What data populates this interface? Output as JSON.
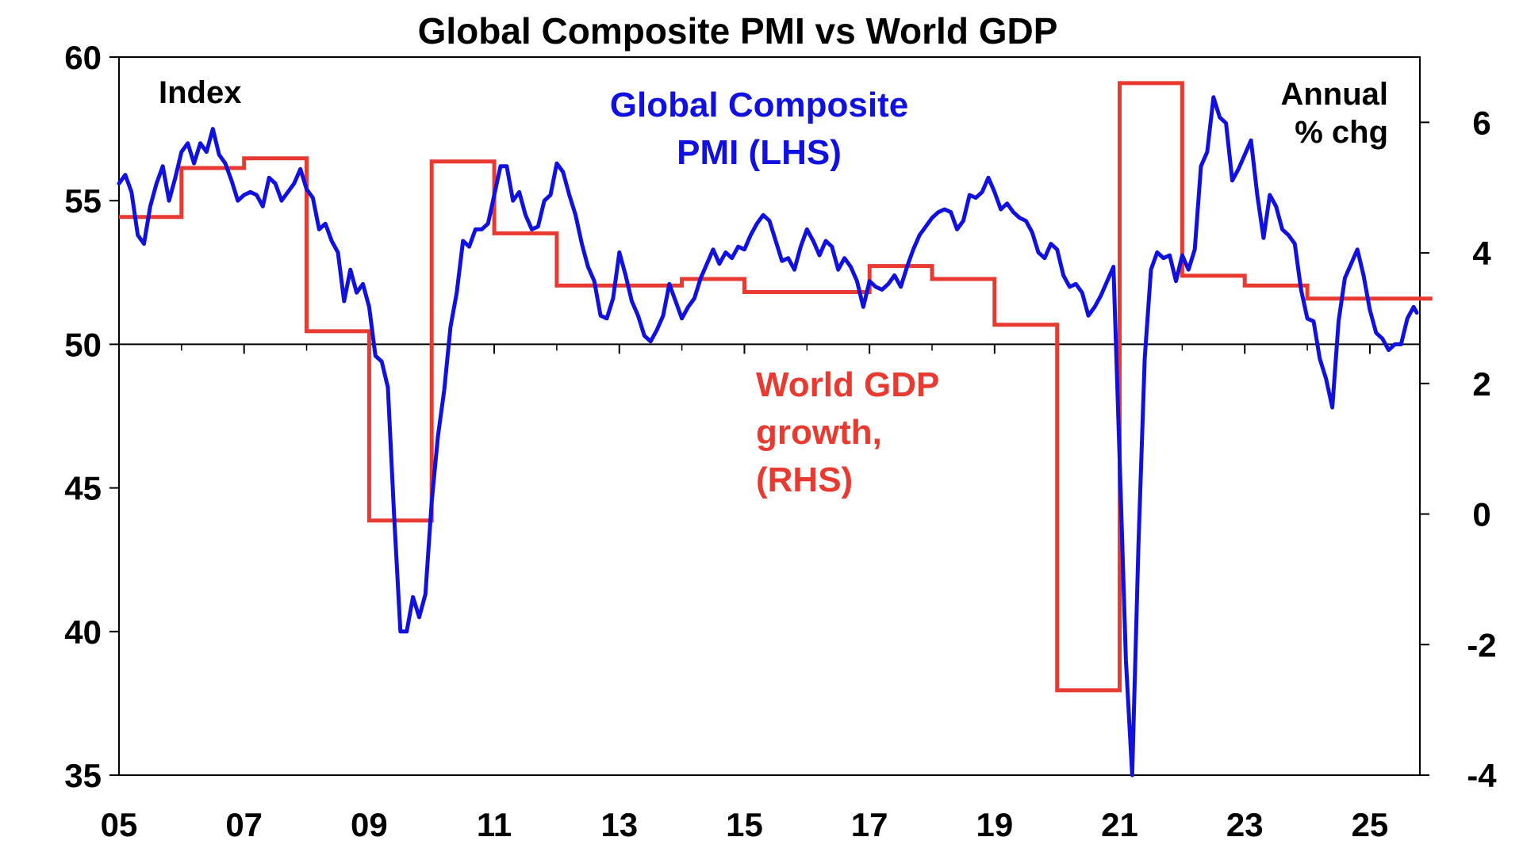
{
  "chart_data": {
    "type": "line",
    "title": "Global Composite PMI vs World GDP",
    "left_axis": {
      "label": "Index",
      "range": [
        35,
        60
      ],
      "ticks": [
        "35",
        "40",
        "45",
        "50",
        "55",
        "60"
      ]
    },
    "right_axis": {
      "label_lines": [
        "Annual",
        "% chg"
      ],
      "range": [
        -4,
        7
      ],
      "ticks": [
        "-4",
        "-2",
        "0",
        "2",
        "4",
        "6"
      ]
    },
    "x_axis": {
      "range": [
        2005,
        2025.8
      ],
      "ticks": [
        "05",
        "07",
        "09",
        "11",
        "13",
        "15",
        "17",
        "19",
        "21",
        "23",
        "25"
      ]
    },
    "reference_line": 50,
    "grid": false,
    "series": [
      {
        "name_lines": [
          "Global Composite",
          "PMI (LHS)"
        ],
        "axis": "left",
        "color": "#1010e0",
        "points": [
          [
            2005.0,
            55.6
          ],
          [
            2005.1,
            55.9
          ],
          [
            2005.2,
            55.3
          ],
          [
            2005.3,
            53.8
          ],
          [
            2005.4,
            53.5
          ],
          [
            2005.5,
            54.8
          ],
          [
            2005.6,
            55.6
          ],
          [
            2005.7,
            56.2
          ],
          [
            2005.8,
            55.0
          ],
          [
            2005.9,
            55.8
          ],
          [
            2006.0,
            56.7
          ],
          [
            2006.1,
            57.0
          ],
          [
            2006.2,
            56.3
          ],
          [
            2006.3,
            57.0
          ],
          [
            2006.4,
            56.7
          ],
          [
            2006.5,
            57.5
          ],
          [
            2006.6,
            56.6
          ],
          [
            2006.7,
            56.3
          ],
          [
            2006.8,
            55.7
          ],
          [
            2006.9,
            55.0
          ],
          [
            2007.0,
            55.2
          ],
          [
            2007.1,
            55.3
          ],
          [
            2007.2,
            55.2
          ],
          [
            2007.3,
            54.8
          ],
          [
            2007.4,
            55.8
          ],
          [
            2007.5,
            55.6
          ],
          [
            2007.6,
            55.0
          ],
          [
            2007.7,
            55.3
          ],
          [
            2007.8,
            55.6
          ],
          [
            2007.9,
            56.1
          ],
          [
            2008.0,
            55.4
          ],
          [
            2008.1,
            55.1
          ],
          [
            2008.2,
            54.0
          ],
          [
            2008.3,
            54.2
          ],
          [
            2008.4,
            53.6
          ],
          [
            2008.5,
            53.2
          ],
          [
            2008.6,
            51.5
          ],
          [
            2008.7,
            52.6
          ],
          [
            2008.8,
            51.8
          ],
          [
            2008.9,
            52.1
          ],
          [
            2009.0,
            51.3
          ],
          [
            2009.1,
            49.6
          ],
          [
            2009.2,
            49.4
          ],
          [
            2009.3,
            48.5
          ],
          [
            2009.4,
            44.0
          ],
          [
            2009.5,
            40.0
          ],
          [
            2009.6,
            40.0
          ],
          [
            2009.7,
            41.2
          ],
          [
            2009.8,
            40.5
          ],
          [
            2009.9,
            41.3
          ],
          [
            2010.0,
            44.5
          ],
          [
            2010.1,
            46.8
          ],
          [
            2010.2,
            48.4
          ],
          [
            2010.3,
            50.6
          ],
          [
            2010.4,
            51.8
          ],
          [
            2010.5,
            53.6
          ],
          [
            2010.6,
            53.4
          ],
          [
            2010.7,
            54.0
          ],
          [
            2010.8,
            54.0
          ],
          [
            2010.9,
            54.2
          ],
          [
            2011.0,
            55.2
          ],
          [
            2011.1,
            56.2
          ],
          [
            2011.2,
            56.2
          ],
          [
            2011.3,
            55.0
          ],
          [
            2011.4,
            55.3
          ],
          [
            2011.5,
            54.5
          ],
          [
            2011.6,
            54.0
          ],
          [
            2011.7,
            54.1
          ],
          [
            2011.8,
            55.0
          ],
          [
            2011.9,
            55.2
          ],
          [
            2012.0,
            56.3
          ],
          [
            2012.1,
            56.0
          ],
          [
            2012.2,
            55.2
          ],
          [
            2012.3,
            54.5
          ],
          [
            2012.4,
            53.5
          ],
          [
            2012.5,
            52.7
          ],
          [
            2012.6,
            52.2
          ],
          [
            2012.7,
            51.0
          ],
          [
            2012.8,
            50.9
          ],
          [
            2012.9,
            51.6
          ],
          [
            2013.0,
            53.2
          ],
          [
            2013.1,
            52.4
          ],
          [
            2013.2,
            51.5
          ],
          [
            2013.3,
            51.0
          ],
          [
            2013.4,
            50.3
          ],
          [
            2013.5,
            50.1
          ],
          [
            2013.6,
            50.5
          ],
          [
            2013.7,
            51.0
          ],
          [
            2013.8,
            52.1
          ],
          [
            2013.9,
            51.5
          ],
          [
            2014.0,
            50.9
          ],
          [
            2014.1,
            51.3
          ],
          [
            2014.2,
            51.6
          ],
          [
            2014.3,
            52.3
          ],
          [
            2014.4,
            52.8
          ],
          [
            2014.5,
            53.3
          ],
          [
            2014.6,
            52.8
          ],
          [
            2014.7,
            53.2
          ],
          [
            2014.8,
            53.0
          ],
          [
            2014.9,
            53.4
          ],
          [
            2015.0,
            53.3
          ],
          [
            2015.1,
            53.8
          ],
          [
            2015.2,
            54.2
          ],
          [
            2015.3,
            54.5
          ],
          [
            2015.4,
            54.3
          ],
          [
            2015.5,
            53.6
          ],
          [
            2015.6,
            52.9
          ],
          [
            2015.7,
            53.0
          ],
          [
            2015.8,
            52.6
          ],
          [
            2015.9,
            53.4
          ],
          [
            2016.0,
            54.0
          ],
          [
            2016.1,
            53.6
          ],
          [
            2016.2,
            53.1
          ],
          [
            2016.3,
            53.6
          ],
          [
            2016.4,
            53.4
          ],
          [
            2016.5,
            52.6
          ],
          [
            2016.6,
            53.0
          ],
          [
            2016.7,
            52.7
          ],
          [
            2016.8,
            52.2
          ],
          [
            2016.9,
            51.3
          ],
          [
            2017.0,
            52.2
          ],
          [
            2017.1,
            52.0
          ],
          [
            2017.2,
            51.9
          ],
          [
            2017.3,
            52.1
          ],
          [
            2017.4,
            52.4
          ],
          [
            2017.5,
            52.0
          ],
          [
            2017.6,
            52.7
          ],
          [
            2017.7,
            53.3
          ],
          [
            2017.8,
            53.8
          ],
          [
            2017.9,
            54.1
          ],
          [
            2018.0,
            54.4
          ],
          [
            2018.1,
            54.6
          ],
          [
            2018.2,
            54.7
          ],
          [
            2018.3,
            54.6
          ],
          [
            2018.4,
            54.0
          ],
          [
            2018.5,
            54.3
          ],
          [
            2018.6,
            55.2
          ],
          [
            2018.7,
            55.1
          ],
          [
            2018.8,
            55.3
          ],
          [
            2018.9,
            55.8
          ],
          [
            2019.0,
            55.3
          ],
          [
            2019.1,
            54.7
          ],
          [
            2019.2,
            54.9
          ],
          [
            2019.3,
            54.6
          ],
          [
            2019.4,
            54.4
          ],
          [
            2019.5,
            54.3
          ],
          [
            2019.6,
            53.9
          ],
          [
            2019.7,
            53.2
          ],
          [
            2019.8,
            53.0
          ],
          [
            2019.9,
            53.5
          ],
          [
            2020.0,
            53.3
          ],
          [
            2020.1,
            52.4
          ],
          [
            2020.2,
            52.0
          ],
          [
            2020.3,
            52.1
          ],
          [
            2020.4,
            51.8
          ],
          [
            2020.5,
            51.0
          ],
          [
            2020.6,
            51.3
          ],
          [
            2020.7,
            51.7
          ],
          [
            2020.8,
            52.2
          ],
          [
            2020.9,
            52.7
          ],
          [
            2021.0,
            46.0
          ],
          [
            2021.1,
            39.0
          ],
          [
            2021.2,
            35.0
          ],
          [
            2021.3,
            43.0
          ],
          [
            2021.4,
            49.5
          ],
          [
            2021.5,
            52.6
          ],
          [
            2021.6,
            53.2
          ],
          [
            2021.7,
            53.0
          ],
          [
            2021.8,
            53.1
          ],
          [
            2021.9,
            52.2
          ],
          [
            2022.0,
            53.1
          ],
          [
            2022.1,
            52.6
          ],
          [
            2022.2,
            53.3
          ],
          [
            2022.3,
            56.2
          ],
          [
            2022.4,
            56.7
          ],
          [
            2022.5,
            58.6
          ],
          [
            2022.6,
            57.9
          ],
          [
            2022.7,
            57.7
          ],
          [
            2022.8,
            55.7
          ],
          [
            2022.9,
            56.1
          ],
          [
            2023.0,
            56.6
          ],
          [
            2023.1,
            57.1
          ],
          [
            2023.2,
            55.2
          ],
          [
            2023.3,
            53.7
          ],
          [
            2023.4,
            55.2
          ],
          [
            2023.5,
            54.8
          ],
          [
            2023.6,
            54.0
          ],
          [
            2023.7,
            53.8
          ],
          [
            2023.8,
            53.5
          ],
          [
            2023.9,
            51.9
          ],
          [
            2024.0,
            50.9
          ],
          [
            2024.1,
            50.8
          ],
          [
            2024.2,
            49.5
          ],
          [
            2024.3,
            48.8
          ],
          [
            2024.4,
            47.8
          ],
          [
            2024.5,
            50.8
          ],
          [
            2024.6,
            52.3
          ],
          [
            2024.7,
            52.8
          ],
          [
            2024.8,
            53.3
          ],
          [
            2024.9,
            52.4
          ],
          [
            2025.0,
            51.2
          ],
          [
            2025.1,
            50.4
          ],
          [
            2025.2,
            50.2
          ],
          [
            2025.3,
            49.8
          ],
          [
            2025.4,
            50.0
          ],
          [
            2025.5,
            50.0
          ],
          [
            2025.6,
            50.9
          ],
          [
            2025.7,
            51.3
          ],
          [
            2025.75,
            51.1
          ]
        ]
      },
      {
        "name_lines": [
          "World GDP",
          "growth,",
          "(RHS)"
        ],
        "axis": "right",
        "color": "#e83a30",
        "step_points": [
          [
            2005.0,
            4.55
          ],
          [
            2006.0,
            5.3
          ],
          [
            2007.0,
            5.45
          ],
          [
            2008.0,
            2.8
          ],
          [
            2009.0,
            -0.1
          ],
          [
            2010.0,
            5.4
          ],
          [
            2011.0,
            4.3
          ],
          [
            2012.0,
            3.5
          ],
          [
            2014.0,
            3.6
          ],
          [
            2015.0,
            3.4
          ],
          [
            2017.0,
            3.8
          ],
          [
            2018.0,
            3.6
          ],
          [
            2019.0,
            2.9
          ],
          [
            2020.0,
            -2.7
          ],
          [
            2021.0,
            6.6
          ],
          [
            2022.0,
            3.65
          ],
          [
            2023.0,
            3.5
          ],
          [
            2024.0,
            3.3
          ],
          [
            2025.0,
            3.3
          ]
        ]
      }
    ]
  }
}
